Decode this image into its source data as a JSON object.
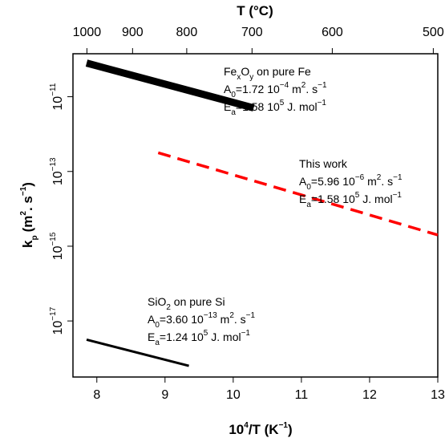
{
  "chart_data": {
    "type": "line",
    "x_axis": {
      "label_base": "10",
      "label_exp": "4",
      "label_mid": "/T (K",
      "label_unit_exp": "−1",
      "label_end": ")",
      "range": [
        7.65,
        13.0
      ],
      "ticks": [
        8,
        9,
        10,
        11,
        12,
        13
      ],
      "tick_labels": [
        "8",
        "9",
        "10",
        "11",
        "12",
        "13"
      ]
    },
    "top_axis": {
      "label": "T (°C)",
      "ticks_celsius": [
        1000,
        900,
        800,
        700,
        600,
        500
      ],
      "tick_labels": [
        "1000",
        "900",
        "800",
        "700",
        "600",
        "500"
      ]
    },
    "y_axis": {
      "label_main": "k",
      "label_sub": "p",
      "label_units_a": "(m",
      "label_units_a_exp": "2",
      "label_units_b": ". s",
      "label_units_b_exp": "−1",
      "label_end": ")",
      "scale": "log",
      "range_log10": [
        -18.5,
        -9.85
      ],
      "ticks_log10": [
        -11,
        -13,
        -15,
        -17
      ],
      "tick_base": "10",
      "tick_exponents": [
        "−11",
        "−13",
        "−15",
        "−17"
      ]
    },
    "grid": false,
    "series": [
      {
        "id": "fe",
        "x": [
          7.85,
          10.3
        ],
        "y_log10": [
          -10.1,
          -11.3
        ],
        "color": "#000000",
        "style": "solid",
        "weight": "thick"
      },
      {
        "id": "this",
        "x": [
          8.9,
          13.0
        ],
        "y_log10": [
          -12.5,
          -14.7
        ],
        "color": "#ff0000",
        "style": "dashed",
        "weight": "medium"
      },
      {
        "id": "si",
        "x": [
          7.85,
          9.35
        ],
        "y_log10": [
          -17.5,
          -18.2
        ],
        "color": "#000000",
        "style": "solid",
        "weight": "normal"
      }
    ],
    "annotations": [
      {
        "id": "fe",
        "line1": {
          "a": "Fe",
          "a_sub": "x",
          "b": "O",
          "b_sub": "y",
          "c": " on pure Fe"
        },
        "line2": {
          "p": "A",
          "p_sub": "0",
          "v": "=1.72 10",
          "v_exp": "−4",
          "u1": " m",
          "u1_exp": "2",
          "u2": ". s",
          "u2_exp": "−1"
        },
        "line3": {
          "p": "E",
          "p_sub": "a",
          "v": "=1.58 10",
          "v_exp": "5",
          "u": " J. mol",
          "u_exp": "−1"
        }
      },
      {
        "id": "this",
        "line1": {
          "c": "This work"
        },
        "line2": {
          "p": "A",
          "p_sub": "0",
          "v": "=5.96 10",
          "v_exp": "−6",
          "u1": " m",
          "u1_exp": "2",
          "u2": ". s",
          "u2_exp": "−1"
        },
        "line3": {
          "p": "E",
          "p_sub": "a",
          "v": "=1.58 10",
          "v_exp": "5",
          "u": " J. mol",
          "u_exp": "−1"
        }
      },
      {
        "id": "si",
        "line1": {
          "a": "SiO",
          "a_sub": "2",
          "c": " on pure Si"
        },
        "line2": {
          "p": "A",
          "p_sub": "0",
          "v": "=3.60 10",
          "v_exp": "−13",
          "u1": " m",
          "u1_exp": "2",
          "u2": ". s",
          "u2_exp": "−1"
        },
        "line3": {
          "p": "E",
          "p_sub": "a",
          "v": "=1.24 10",
          "v_exp": "5",
          "u": " J. mol",
          "u_exp": "−1"
        }
      }
    ]
  }
}
